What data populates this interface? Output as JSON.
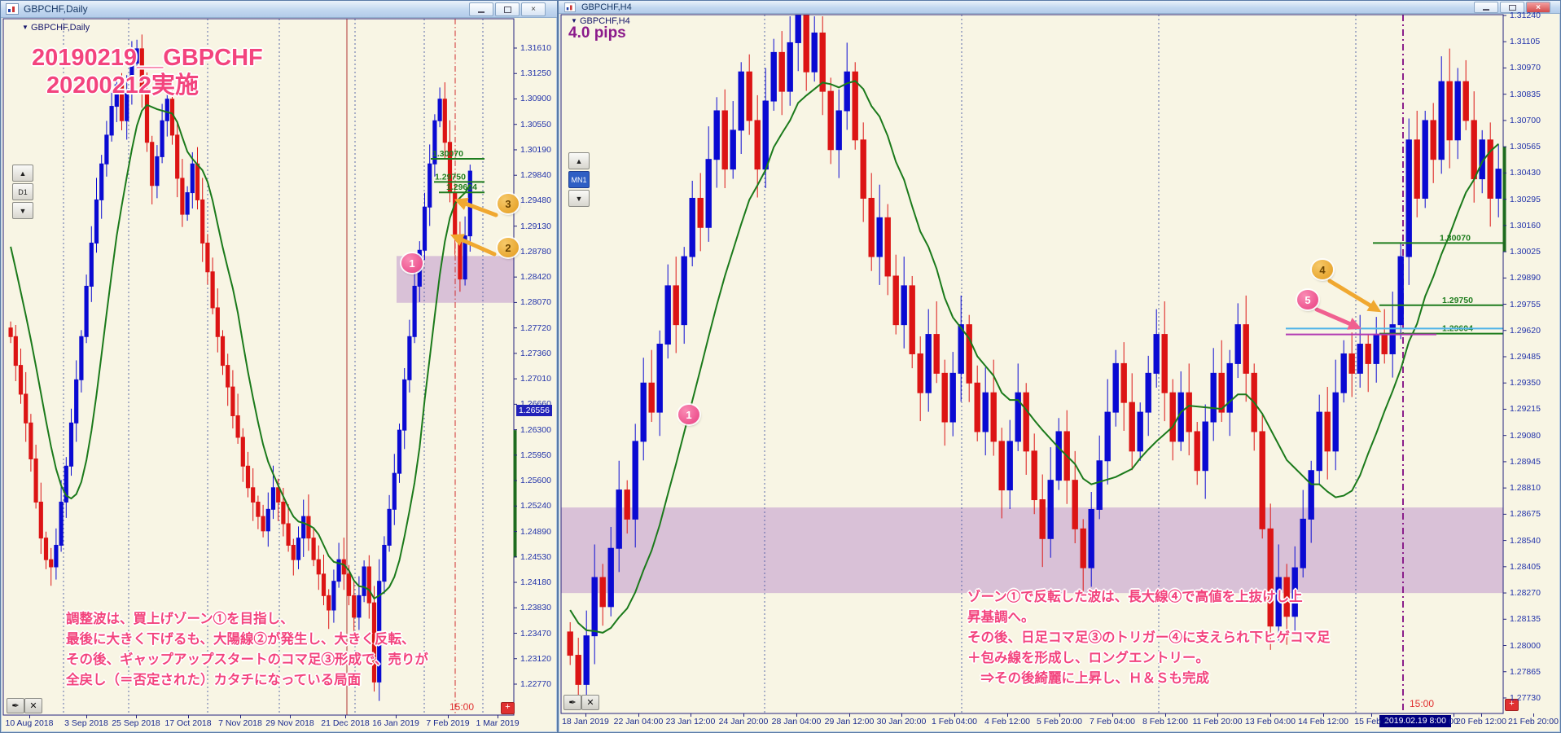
{
  "colors": {
    "bull": "#0A0AD2",
    "bear": "#DC1414",
    "ma": "#1B7A1B",
    "zone": "rgba(186,142,202,0.5)",
    "grid": "#4354A0",
    "level_green": "#1E7D1E",
    "cyan_line": "#4FB3E8",
    "magenta_line": "#B23AB2",
    "red_vline": "#C83030",
    "purple_vline": "#8B1F8B",
    "accent_pink": "#F3447E",
    "axis_text": "#2233AA"
  },
  "left": {
    "title": "GBPCHF,Daily",
    "legend": "GBPCHF,Daily",
    "legend_tri": "▼",
    "heading1": "20190219__GBPCHF",
    "heading2": "20200212実施",
    "nav_up": "▲",
    "nav_down": "▼",
    "tf": "D1",
    "tool1": "✒",
    "tool2": "✕",
    "plus": "+",
    "session": "15:00",
    "current_price": "1.26556",
    "annotation": [
      "調整波は、買上げゾーン①を目指し、",
      "最後に大きく下げるも、大陽線②が発生し、大きく反転、",
      "その後、ギャップアップスタートのコマ足③形成で、売りが",
      "全戻し（＝否定された）カタチになっている局面"
    ],
    "markers": [
      "1",
      "2",
      "3"
    ]
  },
  "right": {
    "title": "GBPCHF,H4",
    "legend": "GBPCHF,H4",
    "legend_tri": "▼",
    "pips": "4.0 pips",
    "nav_up": "▲",
    "nav_down": "▼",
    "tf": "MN1",
    "tool1": "✒",
    "tool2": "✕",
    "plus": "+",
    "session": "15:00",
    "selected_time": "2019.02.19 8:00",
    "annotation": [
      "ゾーン①で反転した波は、長大線④で高値を上抜けし上",
      "昇基調へ。",
      "その後、日足コマ足③のトリガー④に支えられ下ヒゲコマ足",
      "＋包み線を形成し、ロングエントリー。",
      "　⇒その後綺麗に上昇し、Ｈ＆Ｓも完成"
    ],
    "markers": [
      "1",
      "4",
      "5"
    ]
  },
  "chart_data": [
    {
      "type": "candlestick",
      "symbol": "GBPCHF",
      "timeframe": "Daily",
      "y_axis_labels": [
        "1.31610",
        "1.31250",
        "1.30900",
        "1.30550",
        "1.30190",
        "1.29840",
        "1.29480",
        "1.29130",
        "1.28780",
        "1.28420",
        "1.28070",
        "1.27720",
        "1.27360",
        "1.27010",
        "1.26660",
        "1.26300",
        "1.25950",
        "1.25600",
        "1.25240",
        "1.24890",
        "1.24530",
        "1.24180",
        "1.23830",
        "1.23470",
        "1.23120",
        "1.22770"
      ],
      "x_axis_labels": [
        "10 Aug 2018",
        "3 Sep 2018",
        "25 Sep 2018",
        "17 Oct 2018",
        "7 Nov 2018",
        "29 Nov 2018",
        "21 Dec 2018",
        "16 Jan 2019",
        "7 Feb 2019",
        "1 Mar 2019"
      ],
      "ylim": [
        1.2277,
        1.3161
      ],
      "closes": [
        1.276,
        1.272,
        1.268,
        1.264,
        1.259,
        1.253,
        1.248,
        1.245,
        1.244,
        1.247,
        1.253,
        1.258,
        1.264,
        1.27,
        1.276,
        1.283,
        1.289,
        1.295,
        1.3,
        1.304,
        1.308,
        1.311,
        1.306,
        1.31,
        1.314,
        1.316,
        1.31,
        1.303,
        1.297,
        1.301,
        1.306,
        1.309,
        1.304,
        1.298,
        1.293,
        1.296,
        1.3,
        1.295,
        1.289,
        1.285,
        1.28,
        1.276,
        1.272,
        1.269,
        1.265,
        1.262,
        1.258,
        1.255,
        1.253,
        1.251,
        1.249,
        1.252,
        1.255,
        1.253,
        1.25,
        1.247,
        1.245,
        1.248,
        1.251,
        1.248,
        1.245,
        1.243,
        1.24,
        1.238,
        1.242,
        1.245,
        1.243,
        1.24,
        1.237,
        1.24,
        1.244,
        1.239,
        1.228,
        1.242,
        1.247,
        1.252,
        1.257,
        1.263,
        1.27,
        1.276,
        1.283,
        1.288,
        1.294,
        1.3,
        1.306,
        1.309,
        1.303,
        1.296,
        1.29,
        1.284,
        1.29,
        1.299
      ],
      "ma_seed": [
        1.306,
        1.303,
        1.3,
        1.2965,
        1.293,
        1.2895,
        1.286,
        1.283,
        1.28,
        1.278
      ],
      "zone": {
        "top": 1.2872,
        "bottom": 1.2807
      },
      "levels": [
        {
          "price": 1.3007,
          "label": "1.30070"
        },
        {
          "price": 1.2975,
          "label": "1.29750"
        },
        {
          "price": 1.29604,
          "label": "1.29604"
        }
      ],
      "current_price": 1.26556
    },
    {
      "type": "candlestick",
      "symbol": "GBPCHF",
      "timeframe": "H4",
      "y_axis_labels": [
        "1.31240",
        "1.31105",
        "1.30970",
        "1.30835",
        "1.30700",
        "1.30565",
        "1.30430",
        "1.30295",
        "1.30160",
        "1.30025",
        "1.29890",
        "1.29755",
        "1.29620",
        "1.29485",
        "1.29350",
        "1.29215",
        "1.29080",
        "1.28945",
        "1.28810",
        "1.28675",
        "1.28540",
        "1.28405",
        "1.28270",
        "1.28135",
        "1.28000",
        "1.27865",
        "1.27730"
      ],
      "x_axis_labels": [
        "18 Jan 2019",
        "22 Jan 04:00",
        "23 Jan 12:00",
        "24 Jan 20:00",
        "28 Jan 04:00",
        "29 Jan 12:00",
        "30 Jan 20:00",
        "1 Feb 04:00",
        "4 Feb 12:00",
        "5 Feb 20:00",
        "7 Feb 04:00",
        "8 Feb 12:00",
        "11 Feb 20:00",
        "13 Feb 04:00",
        "14 Feb 12:00",
        "15 Feb 2",
        "00",
        "20 Feb 12:00",
        "21 Feb 20:00"
      ],
      "ylim": [
        1.2773,
        1.3124
      ],
      "closes": [
        1.2795,
        1.278,
        1.2805,
        1.2835,
        1.282,
        1.285,
        1.288,
        1.2865,
        1.2905,
        1.2935,
        1.292,
        1.2955,
        1.2985,
        1.2965,
        1.3,
        1.303,
        1.3015,
        1.305,
        1.3075,
        1.3045,
        1.3065,
        1.3095,
        1.307,
        1.3045,
        1.308,
        1.3105,
        1.3085,
        1.311,
        1.3124,
        1.3095,
        1.3115,
        1.3085,
        1.3055,
        1.3075,
        1.3095,
        1.306,
        1.303,
        1.3,
        1.302,
        1.299,
        1.2965,
        1.2985,
        1.295,
        1.293,
        1.296,
        1.294,
        1.2915,
        1.294,
        1.2965,
        1.2935,
        1.291,
        1.293,
        1.2905,
        1.288,
        1.2905,
        1.293,
        1.29,
        1.2875,
        1.2855,
        1.2885,
        1.291,
        1.2885,
        1.286,
        1.284,
        1.287,
        1.2895,
        1.292,
        1.2945,
        1.2925,
        1.29,
        1.292,
        1.294,
        1.296,
        1.293,
        1.2905,
        1.293,
        1.291,
        1.289,
        1.2915,
        1.294,
        1.292,
        1.2945,
        1.2965,
        1.294,
        1.291,
        1.286,
        1.281,
        1.2835,
        1.2815,
        1.284,
        1.2865,
        1.289,
        1.292,
        1.29,
        1.293,
        1.295,
        1.294,
        1.2955,
        1.2945,
        1.296,
        1.295,
        1.2965,
        1.3,
        1.306,
        1.303,
        1.307,
        1.305,
        1.309,
        1.306,
        1.309,
        1.307,
        1.304,
        1.306,
        1.303,
        1.3045
      ],
      "ma_seed": [
        1.287,
        1.286,
        1.285,
        1.284,
        1.283,
        1.282,
        1.2815,
        1.281,
        1.2805,
        1.28,
        1.2798,
        1.2796
      ],
      "zone": {
        "top": 1.2871,
        "bottom": 1.2827
      },
      "levels": [
        {
          "price": 1.3007,
          "label": "1.30070"
        },
        {
          "price": 1.2975,
          "label": "1.29750"
        },
        {
          "price": 1.29604,
          "label": "1.29604"
        }
      ],
      "cyan_level": 1.2963,
      "magenta_level": 1.296
    }
  ]
}
